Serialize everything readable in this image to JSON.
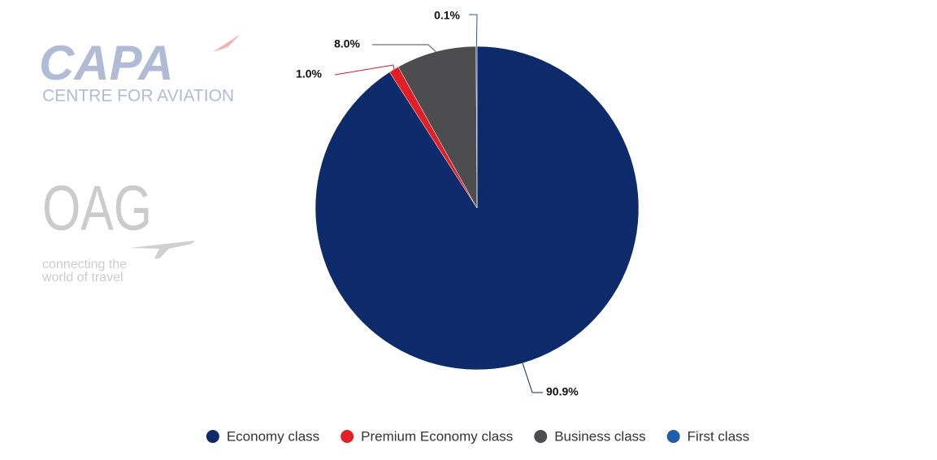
{
  "logos": {
    "capa_name": "CAPA",
    "capa_tagline": "CENTRE FOR AVIATION",
    "oag_name": "OAG",
    "oag_tagline_1": "connecting the",
    "oag_tagline_2": "world of travel"
  },
  "chart_data": {
    "type": "pie",
    "categories": [
      "Economy class",
      "Premium Economy class",
      "Business class",
      "First class"
    ],
    "values": [
      90.9,
      1.0,
      8.0,
      0.1
    ],
    "value_labels": [
      "90.9%",
      "1.0%",
      "8.0%",
      "0.1%"
    ],
    "colors": [
      "#0d2b6b",
      "#e31e24",
      "#4d4d4f",
      "#1f5fa8"
    ],
    "legend": "bottom"
  }
}
